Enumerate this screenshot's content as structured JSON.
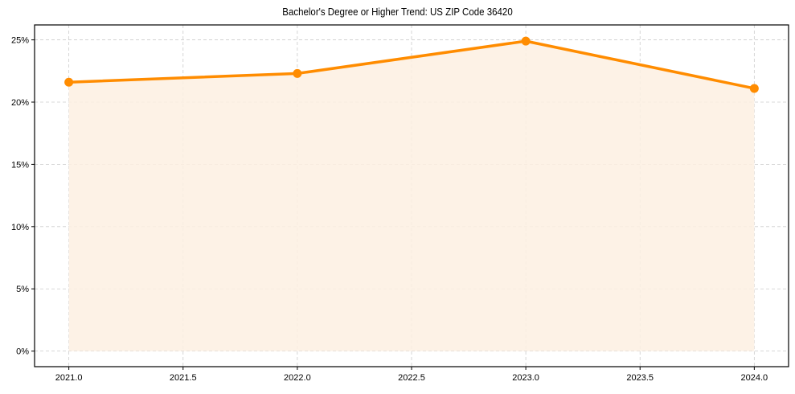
{
  "chart_data": {
    "type": "line",
    "title": "Bachelor's Degree or Higher Trend: US ZIP Code 36420",
    "xlabel": "",
    "ylabel": "",
    "x": [
      2021,
      2022,
      2023,
      2024
    ],
    "series": [
      {
        "name": "Bachelor's Degree or Higher",
        "values": [
          21.6,
          22.3,
          24.9,
          21.1
        ],
        "color": "#ff8c00",
        "fill_color": "#fdf0e2",
        "marker": "circle"
      }
    ],
    "xlim": [
      2020.85,
      2024.15
    ],
    "ylim": [
      -1.25,
      26.2
    ],
    "x_ticks": [
      2021.0,
      2021.5,
      2022.0,
      2022.5,
      2023.0,
      2023.5,
      2024.0
    ],
    "x_tick_labels": [
      "2021.0",
      "2021.5",
      "2022.0",
      "2022.5",
      "2023.0",
      "2023.5",
      "2024.0"
    ],
    "y_ticks": [
      0,
      5,
      10,
      15,
      20,
      25
    ],
    "y_tick_labels": [
      "0%",
      "5%",
      "10%",
      "15%",
      "20%",
      "25%"
    ],
    "grid": true,
    "grid_style": "dashed",
    "legend": false,
    "area_fill": true
  }
}
